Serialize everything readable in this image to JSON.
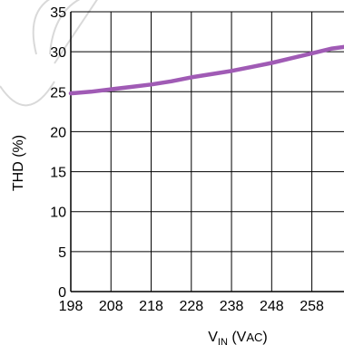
{
  "chart_data": {
    "type": "line",
    "xlabel": {
      "main": "V",
      "sub": "IN",
      "unit_open": " (V",
      "unit_sub": "AC",
      "unit_close": ")"
    },
    "ylabel": "THD (%)",
    "xlim": [
      198,
      266
    ],
    "ylim": [
      0,
      35
    ],
    "xticks": [
      "198",
      "208",
      "218",
      "228",
      "238",
      "248",
      "258"
    ],
    "yticks": [
      "0",
      "5",
      "10",
      "15",
      "20",
      "25",
      "30",
      "35"
    ],
    "grid": true,
    "series": [
      {
        "color": "#a05bb5",
        "x": [
          198,
          203,
          208,
          213,
          218,
          223,
          228,
          233,
          238,
          243,
          248,
          253,
          258,
          263,
          266
        ],
        "y": [
          24.8,
          25.0,
          25.3,
          25.6,
          25.9,
          26.3,
          26.8,
          27.2,
          27.6,
          28.1,
          28.6,
          29.2,
          29.8,
          30.4,
          30.6
        ]
      }
    ],
    "watermark_color": "#d9d9d9"
  }
}
